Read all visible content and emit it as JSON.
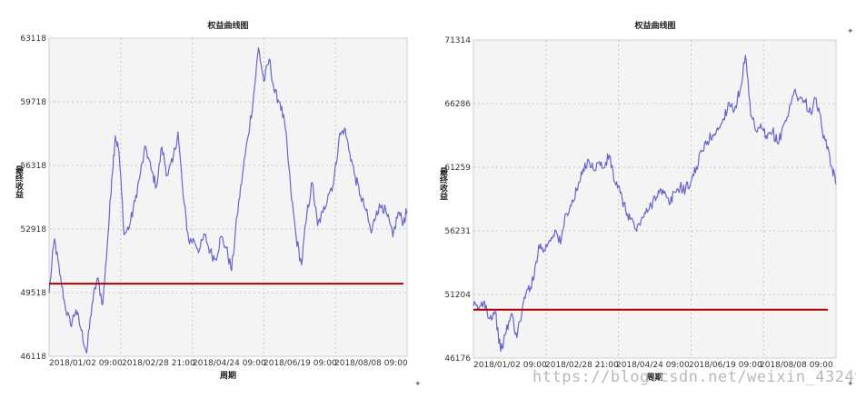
{
  "charts": [
    {
      "title": "权益曲线图",
      "xlabel": "周期",
      "ylabel": "最终收益",
      "yticks": [
        "63118",
        "59718",
        "56318",
        "52918",
        "49518",
        "46118"
      ],
      "xticks": [
        "2018/01/02 09:00",
        "2018/02/28 21:00",
        "2018/04/24 09:00",
        "2018/06/19 09:00",
        "2018/08/08 09:00"
      ]
    },
    {
      "title": "权益曲线图",
      "xlabel": "周期",
      "ylabel": "最终收益",
      "yticks": [
        "71314",
        "66286",
        "61259",
        "56231",
        "51204",
        "46176"
      ],
      "xticks": [
        "2018/01/02 09:00",
        "2018/02/28 21:00",
        "2018/04/24 09:00",
        "2018/06/19 09:00",
        "2018/08/08 09:00"
      ]
    }
  ],
  "chart_data": [
    {
      "type": "line",
      "title": "权益曲线图",
      "xlabel": "周期",
      "ylabel": "最终收益",
      "ylim": [
        46118,
        63118
      ],
      "x_range": [
        "2018/01/02 09:00",
        "2018/09/10 09:00"
      ],
      "grid": true,
      "line_color": "#6a66c9",
      "baseline_color": "#b00000",
      "baseline_value": 50000,
      "series": [
        {
          "x": [
            0.0,
            0.015,
            0.03,
            0.045,
            0.06,
            0.075,
            0.09,
            0.105,
            0.12,
            0.135,
            0.15,
            0.165,
            0.175,
            0.185,
            0.195,
            0.21,
            0.225,
            0.24,
            0.255,
            0.27,
            0.285,
            0.3,
            0.315,
            0.33,
            0.345,
            0.36,
            0.375,
            0.39,
            0.405,
            0.42,
            0.435,
            0.45,
            0.465,
            0.48,
            0.495,
            0.51,
            0.525,
            0.54,
            0.555,
            0.57,
            0.585,
            0.6,
            0.615,
            0.63,
            0.645,
            0.66,
            0.675,
            0.69,
            0.705,
            0.72,
            0.735,
            0.75,
            0.765,
            0.78,
            0.795,
            0.81,
            0.825,
            0.84,
            0.855,
            0.87,
            0.885,
            0.9,
            0.915,
            0.93,
            0.945,
            0.96,
            0.975,
            0.99,
            1.0
          ],
          "y": [
            49500,
            52400,
            50500,
            48800,
            47800,
            48600,
            47500,
            46300,
            48900,
            50300,
            48900,
            52700,
            55600,
            57900,
            57100,
            52600,
            53100,
            54400,
            55900,
            57300,
            56100,
            55200,
            57300,
            55800,
            56500,
            58100,
            54600,
            52300,
            52300,
            51800,
            52600,
            51700,
            51300,
            52500,
            51900,
            50700,
            53600,
            55800,
            57800,
            59800,
            62600,
            60800,
            62000,
            60200,
            59700,
            58300,
            55000,
            52500,
            51000,
            53700,
            55400,
            53100,
            53800,
            54800,
            55400,
            57800,
            58300,
            57000,
            55700,
            54700,
            53900,
            52700,
            53900,
            54200,
            53600,
            52500,
            53800,
            53300,
            53900
          ]
        }
      ]
    },
    {
      "type": "line",
      "title": "权益曲线图",
      "xlabel": "周期",
      "ylabel": "最终收益",
      "ylim": [
        46176,
        71314
      ],
      "x_range": [
        "2018/01/02 09:00",
        "2018/09/10 09:00"
      ],
      "grid": true,
      "line_color": "#6a66c9",
      "baseline_color": "#b00000",
      "baseline_value": 50000,
      "series": [
        {
          "x": [
            0.0,
            0.015,
            0.03,
            0.045,
            0.06,
            0.075,
            0.09,
            0.105,
            0.12,
            0.135,
            0.15,
            0.165,
            0.18,
            0.195,
            0.21,
            0.225,
            0.24,
            0.255,
            0.27,
            0.285,
            0.3,
            0.315,
            0.33,
            0.345,
            0.36,
            0.375,
            0.39,
            0.405,
            0.42,
            0.435,
            0.45,
            0.465,
            0.48,
            0.495,
            0.51,
            0.525,
            0.54,
            0.555,
            0.57,
            0.585,
            0.6,
            0.615,
            0.63,
            0.645,
            0.66,
            0.675,
            0.69,
            0.705,
            0.72,
            0.735,
            0.75,
            0.765,
            0.78,
            0.795,
            0.81,
            0.825,
            0.84,
            0.855,
            0.87,
            0.885,
            0.9,
            0.915,
            0.93,
            0.945,
            0.96,
            0.975,
            0.99,
            1.0
          ],
          "y": [
            50300,
            50100,
            50700,
            49300,
            49900,
            46700,
            48200,
            49700,
            47800,
            50200,
            51600,
            52300,
            55100,
            54700,
            55500,
            56300,
            55200,
            57600,
            58200,
            59400,
            60700,
            61900,
            61100,
            61600,
            61200,
            62200,
            60100,
            59200,
            57800,
            57200,
            56200,
            57300,
            57700,
            58600,
            59400,
            59200,
            58300,
            59300,
            59700,
            59500,
            60100,
            61300,
            62500,
            63300,
            63800,
            64200,
            65100,
            66400,
            65800,
            67300,
            70100,
            65300,
            64100,
            64300,
            63500,
            64100,
            63100,
            64600,
            65600,
            67300,
            66700,
            66400,
            65600,
            66700,
            64600,
            62700,
            61100,
            59900
          ]
        }
      ]
    }
  ],
  "watermark": "https://blog.csdn.net/weixin_43249102",
  "marks": [
    "✦",
    "✦",
    "✦"
  ]
}
